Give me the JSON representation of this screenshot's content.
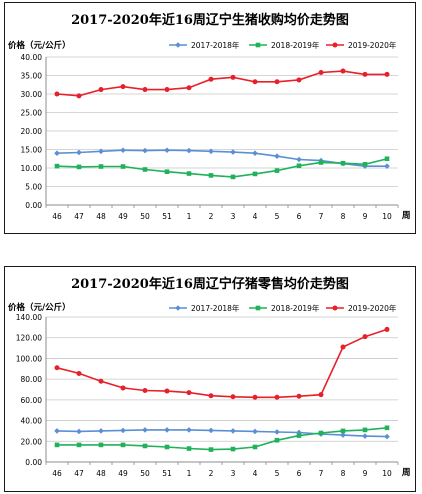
{
  "colors": {
    "s2017": "#5b8fd4",
    "s2018": "#1fb25a",
    "s2019": "#e8202a",
    "grid": "#c8c8c8",
    "axis": "#8c8c8c"
  },
  "chart_data": [
    {
      "type": "line",
      "title": "2017-2020年近16周辽宁生猪收购均价走势图",
      "ylabel": "价格（元/公斤）",
      "xlabel": "周",
      "categories": [
        "46",
        "47",
        "48",
        "49",
        "50",
        "51",
        "1",
        "2",
        "3",
        "4",
        "5",
        "6",
        "7",
        "8",
        "9",
        "10"
      ],
      "ylim": [
        0,
        40
      ],
      "ytick_step": 5,
      "ytick_labels": [
        "0.00",
        "5.00",
        "10.00",
        "15.00",
        "20.00",
        "25.00",
        "30.00",
        "35.00",
        "40.00"
      ],
      "grid": true,
      "legend": "top-right",
      "series": [
        {
          "name": "2017-2018年",
          "marker": "diamond",
          "values": [
            14.0,
            14.2,
            14.5,
            14.8,
            14.7,
            14.8,
            14.7,
            14.5,
            14.3,
            14.0,
            13.2,
            12.3,
            12.0,
            11.2,
            10.5,
            10.5
          ]
        },
        {
          "name": "2018-2019年",
          "marker": "square",
          "values": [
            10.5,
            10.3,
            10.4,
            10.4,
            9.6,
            9.0,
            8.5,
            8.0,
            7.6,
            8.4,
            9.3,
            10.6,
            11.5,
            11.3,
            11.0,
            12.5
          ]
        },
        {
          "name": "2019-2020年",
          "marker": "circle",
          "values": [
            30.0,
            29.5,
            31.2,
            32.0,
            31.2,
            31.2,
            31.7,
            34.0,
            34.5,
            33.3,
            33.3,
            33.8,
            35.8,
            36.2,
            35.3,
            35.3
          ]
        }
      ]
    },
    {
      "type": "line",
      "title": "2017-2020年近16周辽宁仔猪零售均价走势图",
      "ylabel": "价格（元/公斤）",
      "xlabel": "周",
      "categories": [
        "46",
        "47",
        "48",
        "49",
        "50",
        "51",
        "1",
        "2",
        "3",
        "4",
        "5",
        "6",
        "7",
        "8",
        "9",
        "10"
      ],
      "ylim": [
        0,
        140
      ],
      "ytick_step": 20,
      "ytick_labels": [
        "0.00",
        "20.00",
        "40.00",
        "60.00",
        "80.00",
        "100.00",
        "120.00",
        "140.00"
      ],
      "grid": true,
      "legend": "top-right",
      "series": [
        {
          "name": "2017-2018年",
          "marker": "diamond",
          "values": [
            30.0,
            29.5,
            30.0,
            30.5,
            31.0,
            31.0,
            31.0,
            30.5,
            30.0,
            29.5,
            29.0,
            28.5,
            27.0,
            26.0,
            25.0,
            24.5
          ]
        },
        {
          "name": "2018-2019年",
          "marker": "square",
          "values": [
            16.5,
            16.5,
            16.5,
            16.5,
            15.5,
            14.5,
            13.0,
            12.0,
            12.5,
            14.5,
            21.0,
            25.5,
            28.0,
            30.0,
            31.0,
            33.0
          ]
        },
        {
          "name": "2019-2020年",
          "marker": "circle",
          "values": [
            91.0,
            85.5,
            78.0,
            71.5,
            69.0,
            68.5,
            67.0,
            64.0,
            63.0,
            62.5,
            62.5,
            63.5,
            65.0,
            111.0,
            121.0,
            128.0
          ]
        }
      ]
    }
  ]
}
